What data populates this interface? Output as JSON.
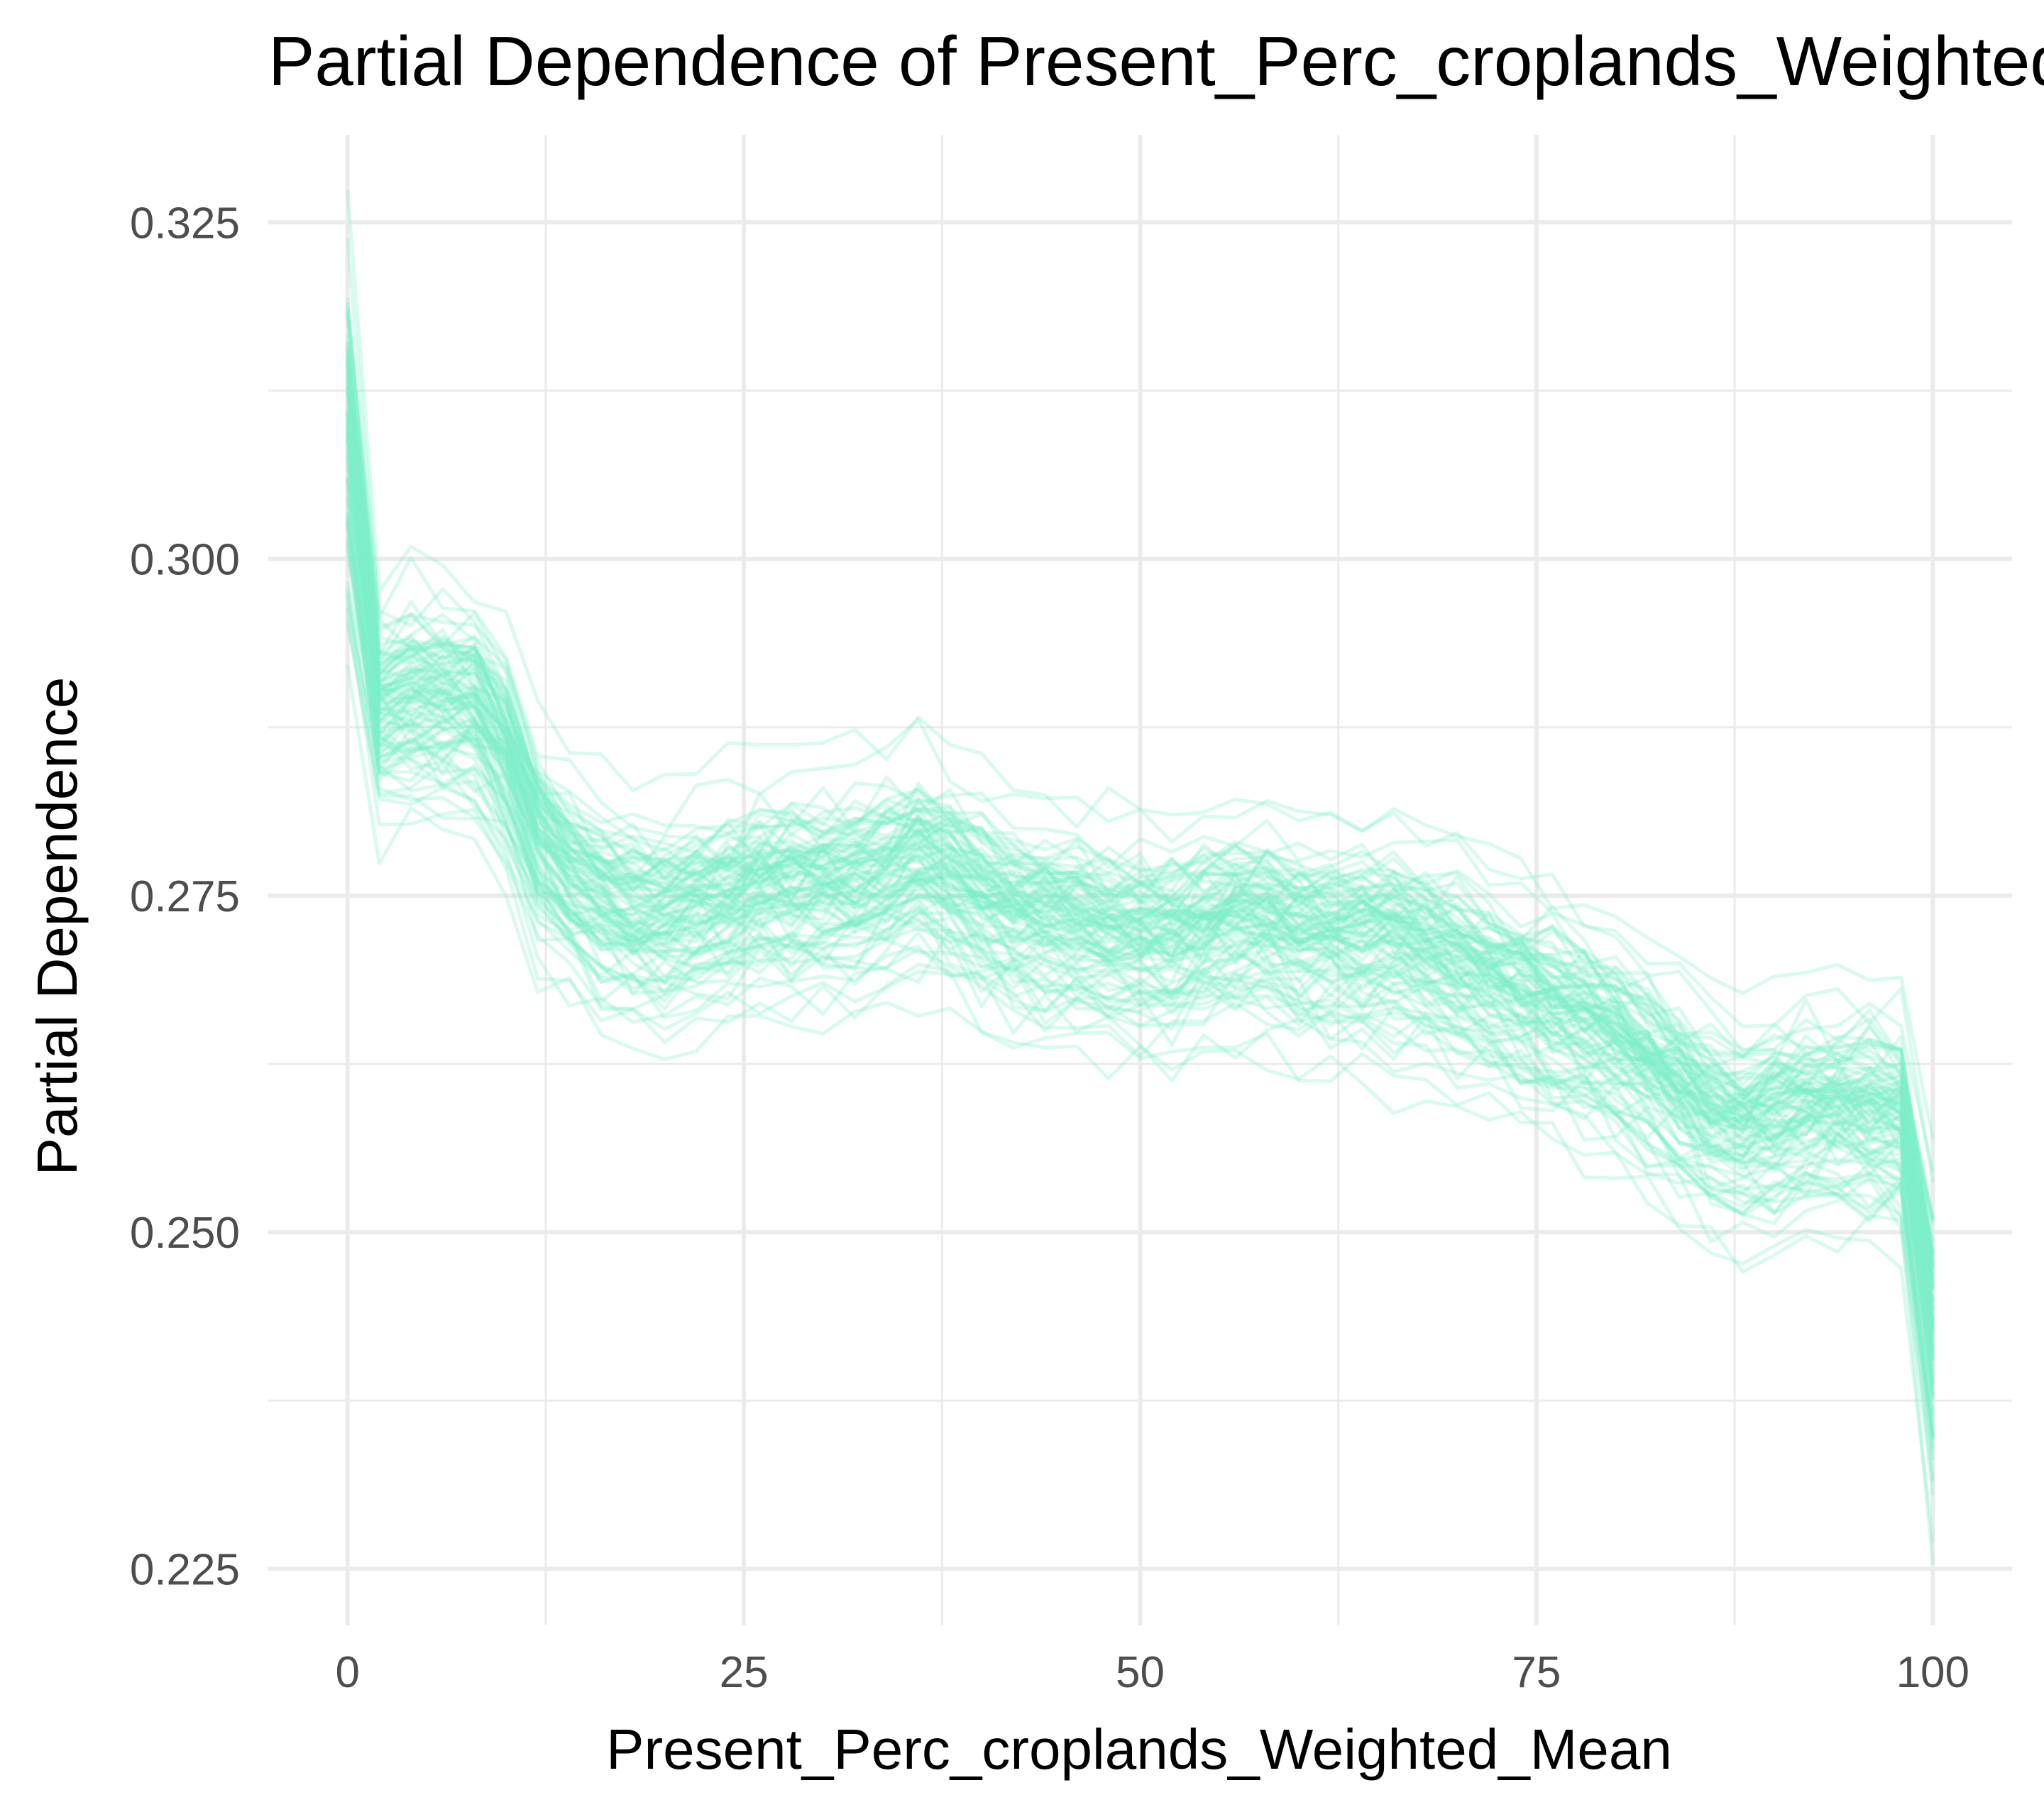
{
  "chart_data": {
    "type": "line",
    "title": "Partial Dependence of Present_Perc_croplands_Weighted_Mean",
    "xlabel": "Present_Perc_croplands_Weighted_Mean",
    "ylabel": "Partial Dependence",
    "xlim": [
      -5,
      105
    ],
    "ylim": [
      0.2208,
      0.3315
    ],
    "x_ticks": [
      "0",
      "25",
      "50",
      "75",
      "100"
    ],
    "y_ticks": [
      "0.225",
      "0.250",
      "0.275",
      "0.300",
      "0.325"
    ],
    "x_tick_values": [
      0,
      25,
      50,
      75,
      100
    ],
    "y_tick_values": [
      0.225,
      0.25,
      0.275,
      0.3,
      0.325
    ],
    "grid": true,
    "legend": "none",
    "line_color": "#7FEFC9",
    "line_alpha": 0.3,
    "series_count": 100,
    "series_spread": 0.0065,
    "x": [
      0,
      2,
      4,
      6,
      8,
      10,
      12,
      14,
      16,
      18,
      20,
      22,
      24,
      26,
      28,
      30,
      32,
      34,
      36,
      38,
      40,
      42,
      44,
      46,
      48,
      50,
      52,
      54,
      56,
      58,
      60,
      62,
      64,
      66,
      68,
      70,
      72,
      74,
      76,
      78,
      80,
      82,
      84,
      86,
      88,
      90,
      92,
      94,
      96,
      98,
      100
    ],
    "mean_curve": [
      0.309,
      0.289,
      0.2895,
      0.2895,
      0.289,
      0.2855,
      0.2795,
      0.2765,
      0.2745,
      0.2735,
      0.2735,
      0.2742,
      0.2748,
      0.2753,
      0.2756,
      0.2758,
      0.2758,
      0.2765,
      0.2775,
      0.2765,
      0.2748,
      0.2738,
      0.2733,
      0.2728,
      0.2722,
      0.272,
      0.272,
      0.2726,
      0.2734,
      0.2733,
      0.2724,
      0.272,
      0.272,
      0.2718,
      0.271,
      0.2698,
      0.2686,
      0.2676,
      0.2665,
      0.2655,
      0.2643,
      0.2625,
      0.2605,
      0.2585,
      0.2578,
      0.2585,
      0.259,
      0.259,
      0.259,
      0.2585,
      0.2425
    ]
  }
}
